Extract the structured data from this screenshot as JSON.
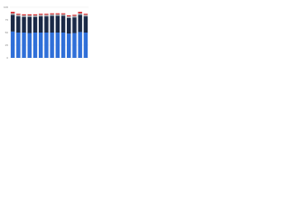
{
  "chart_data": {
    "type": "stacked-bar",
    "categories": [
      null,
      null,
      null,
      null,
      null,
      null,
      null,
      null,
      null,
      null,
      null,
      null,
      null,
      null
    ],
    "series": [
      {
        "color": "#2f6fd8",
        "values": [
          52,
          50,
          50,
          49,
          50,
          50,
          50,
          50,
          50,
          50,
          48,
          49,
          51,
          50
        ]
      },
      {
        "color": "#1b2a47",
        "values": [
          33,
          32,
          31,
          32,
          31,
          32,
          32,
          33,
          33,
          33,
          31,
          31,
          34,
          32
        ]
      },
      {
        "color": "#a9adb3",
        "values": [
          3,
          3,
          3,
          3,
          3,
          3,
          3,
          3,
          3,
          3,
          3,
          3,
          3,
          3
        ]
      },
      {
        "color": "#d6282b",
        "values": [
          3,
          2,
          2,
          2,
          2,
          2,
          2,
          2,
          2,
          2,
          2,
          2,
          3,
          2
        ]
      }
    ],
    "ylim": [
      0,
      100
    ],
    "yticks": [
      0,
      25,
      50,
      75,
      100
    ],
    "grid": true
  }
}
